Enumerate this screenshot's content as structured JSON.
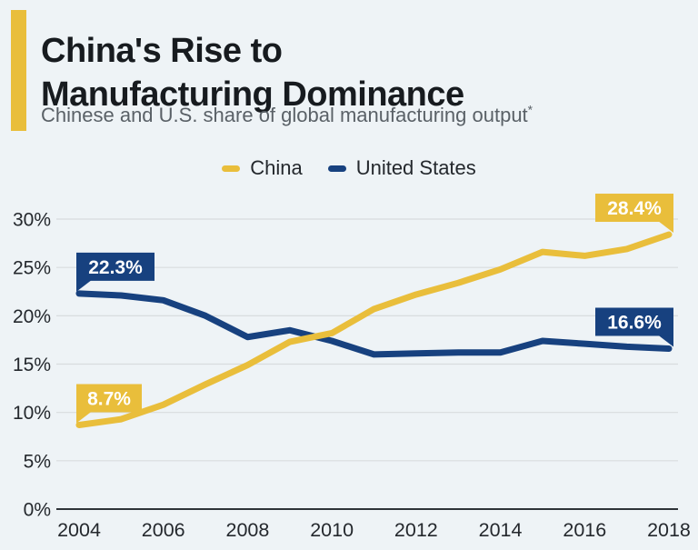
{
  "header": {
    "title_line1": "China's Rise to",
    "title_line2": "Manufacturing Dominance",
    "subtitle": "Chinese and U.S. share of global manufacturing output",
    "subtitle_footnote_marker": "*"
  },
  "legend": {
    "items": [
      {
        "label": "China",
        "color": "#E9BE3B"
      },
      {
        "label": "United States",
        "color": "#17417F"
      }
    ]
  },
  "colors": {
    "background": "#EEF3F6",
    "accent_bar": "#E9BE3B",
    "china": "#E9BE3B",
    "united_states": "#17417F",
    "gridline": "#D8DCDE",
    "axis_line": "#2E3338",
    "callout_text": "#FFFFFF"
  },
  "chart_data": {
    "type": "line",
    "title": "China's Rise to Manufacturing Dominance",
    "subtitle": "Chinese and U.S. share of global manufacturing output*",
    "x": [
      2004,
      2005,
      2006,
      2007,
      2008,
      2009,
      2010,
      2011,
      2012,
      2013,
      2014,
      2015,
      2016,
      2017,
      2018
    ],
    "series": [
      {
        "name": "China",
        "color": "#E9BE3B",
        "values": [
          8.7,
          9.3,
          10.8,
          12.9,
          14.9,
          17.3,
          18.2,
          20.7,
          22.2,
          23.4,
          24.8,
          26.6,
          26.2,
          26.9,
          28.4
        ]
      },
      {
        "name": "United States",
        "color": "#17417F",
        "values": [
          22.3,
          22.1,
          21.6,
          20.0,
          17.8,
          18.5,
          17.4,
          16.0,
          16.1,
          16.2,
          16.2,
          17.4,
          17.1,
          16.8,
          16.6
        ]
      }
    ],
    "xticks": [
      2004,
      2006,
      2008,
      2010,
      2012,
      2014,
      2016,
      2018
    ],
    "yticks": [
      0,
      5,
      10,
      15,
      20,
      25,
      30
    ],
    "ytick_suffix": "%",
    "ylim": [
      0,
      30
    ],
    "grid": true,
    "legend_position": "top",
    "callouts": [
      {
        "series": "United States",
        "x": 2004,
        "label": "22.3%",
        "side": "left"
      },
      {
        "series": "China",
        "x": 2004,
        "label": "8.7%",
        "side": "left"
      },
      {
        "series": "China",
        "x": 2018,
        "label": "28.4%",
        "side": "right"
      },
      {
        "series": "United States",
        "x": 2018,
        "label": "16.6%",
        "side": "right"
      }
    ]
  }
}
